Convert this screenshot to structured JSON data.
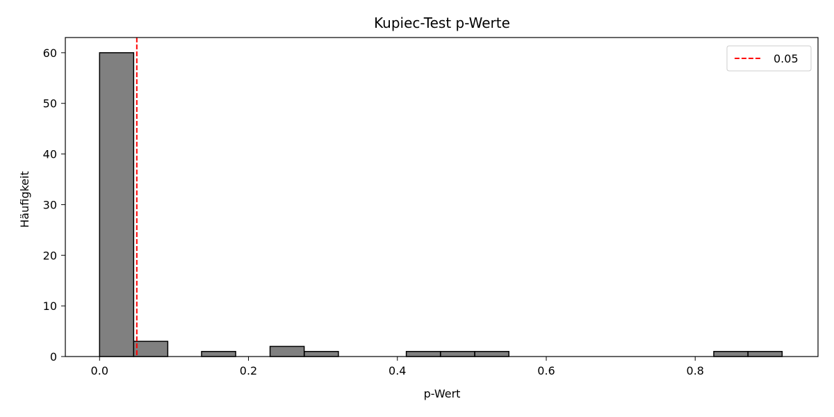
{
  "chart_data": {
    "type": "bar",
    "title": "Kupiec-Test p-Werte",
    "xlabel": "p-Wert",
    "ylabel": "Häufigkeit",
    "xlim": [
      -0.046,
      0.965
    ],
    "ylim": [
      0,
      63
    ],
    "xticks": [
      0.0,
      0.2,
      0.4,
      0.6,
      0.8
    ],
    "xtick_labels": [
      "0.0",
      "0.2",
      "0.4",
      "0.6",
      "0.8"
    ],
    "yticks": [
      0,
      10,
      20,
      30,
      40,
      50,
      60
    ],
    "ytick_labels": [
      "0",
      "10",
      "20",
      "30",
      "40",
      "50",
      "60"
    ],
    "bin_width": 0.0458,
    "bins": [
      {
        "x0": 0.0,
        "count": 60
      },
      {
        "x0": 0.0458,
        "count": 3
      },
      {
        "x0": 0.137,
        "count": 1
      },
      {
        "x0": 0.229,
        "count": 2
      },
      {
        "x0": 0.275,
        "count": 1
      },
      {
        "x0": 0.412,
        "count": 1
      },
      {
        "x0": 0.458,
        "count": 1
      },
      {
        "x0": 0.504,
        "count": 1
      },
      {
        "x0": 0.825,
        "count": 1
      },
      {
        "x0": 0.871,
        "count": 1
      }
    ],
    "bar_color": "#808080",
    "bar_edge_color": "#000000",
    "threshold": {
      "value": 0.05,
      "label": "0.05",
      "color": "#ff0000",
      "style": "dashed"
    },
    "legend": {
      "position": "top-right",
      "entries": [
        "0.05"
      ]
    },
    "grid": false
  }
}
